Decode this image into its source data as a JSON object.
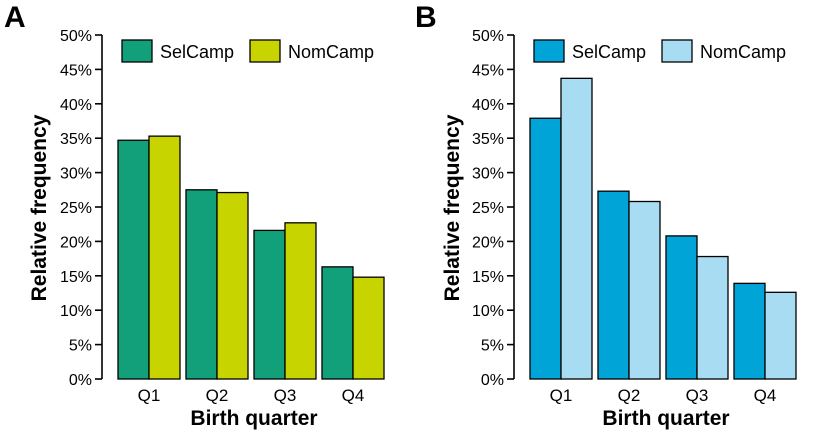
{
  "chart_data": [
    {
      "panel": "A",
      "type": "bar",
      "xlabel": "Birth quarter",
      "ylabel": "Relative frequency",
      "ylim": [
        0,
        50
      ],
      "yticks": [
        "0%",
        "5%",
        "10%",
        "15%",
        "20%",
        "25%",
        "30%",
        "35%",
        "40%",
        "45%",
        "50%"
      ],
      "categories": [
        "Q1",
        "Q2",
        "Q3",
        "Q4"
      ],
      "legend_position": "top-left",
      "series": [
        {
          "name": "SelCamp",
          "color": "#12a07a",
          "values": [
            34.7,
            27.5,
            21.6,
            16.3
          ]
        },
        {
          "name": "NomCamp",
          "color": "#c8d400",
          "values": [
            35.3,
            27.1,
            22.7,
            14.8
          ]
        }
      ]
    },
    {
      "panel": "B",
      "type": "bar",
      "xlabel": "Birth quarter",
      "ylabel": "Relative frequency",
      "ylim": [
        0,
        50
      ],
      "yticks": [
        "0%",
        "5%",
        "10%",
        "15%",
        "20%",
        "25%",
        "30%",
        "35%",
        "40%",
        "45%",
        "50%"
      ],
      "categories": [
        "Q1",
        "Q2",
        "Q3",
        "Q4"
      ],
      "legend_position": "top-left",
      "series": [
        {
          "name": "SelCamp",
          "color": "#00a4d6",
          "values": [
            37.9,
            27.3,
            20.8,
            13.9
          ]
        },
        {
          "name": "NomCamp",
          "color": "#a8dcf2",
          "values": [
            43.7,
            25.8,
            17.8,
            12.6
          ]
        }
      ]
    }
  ]
}
